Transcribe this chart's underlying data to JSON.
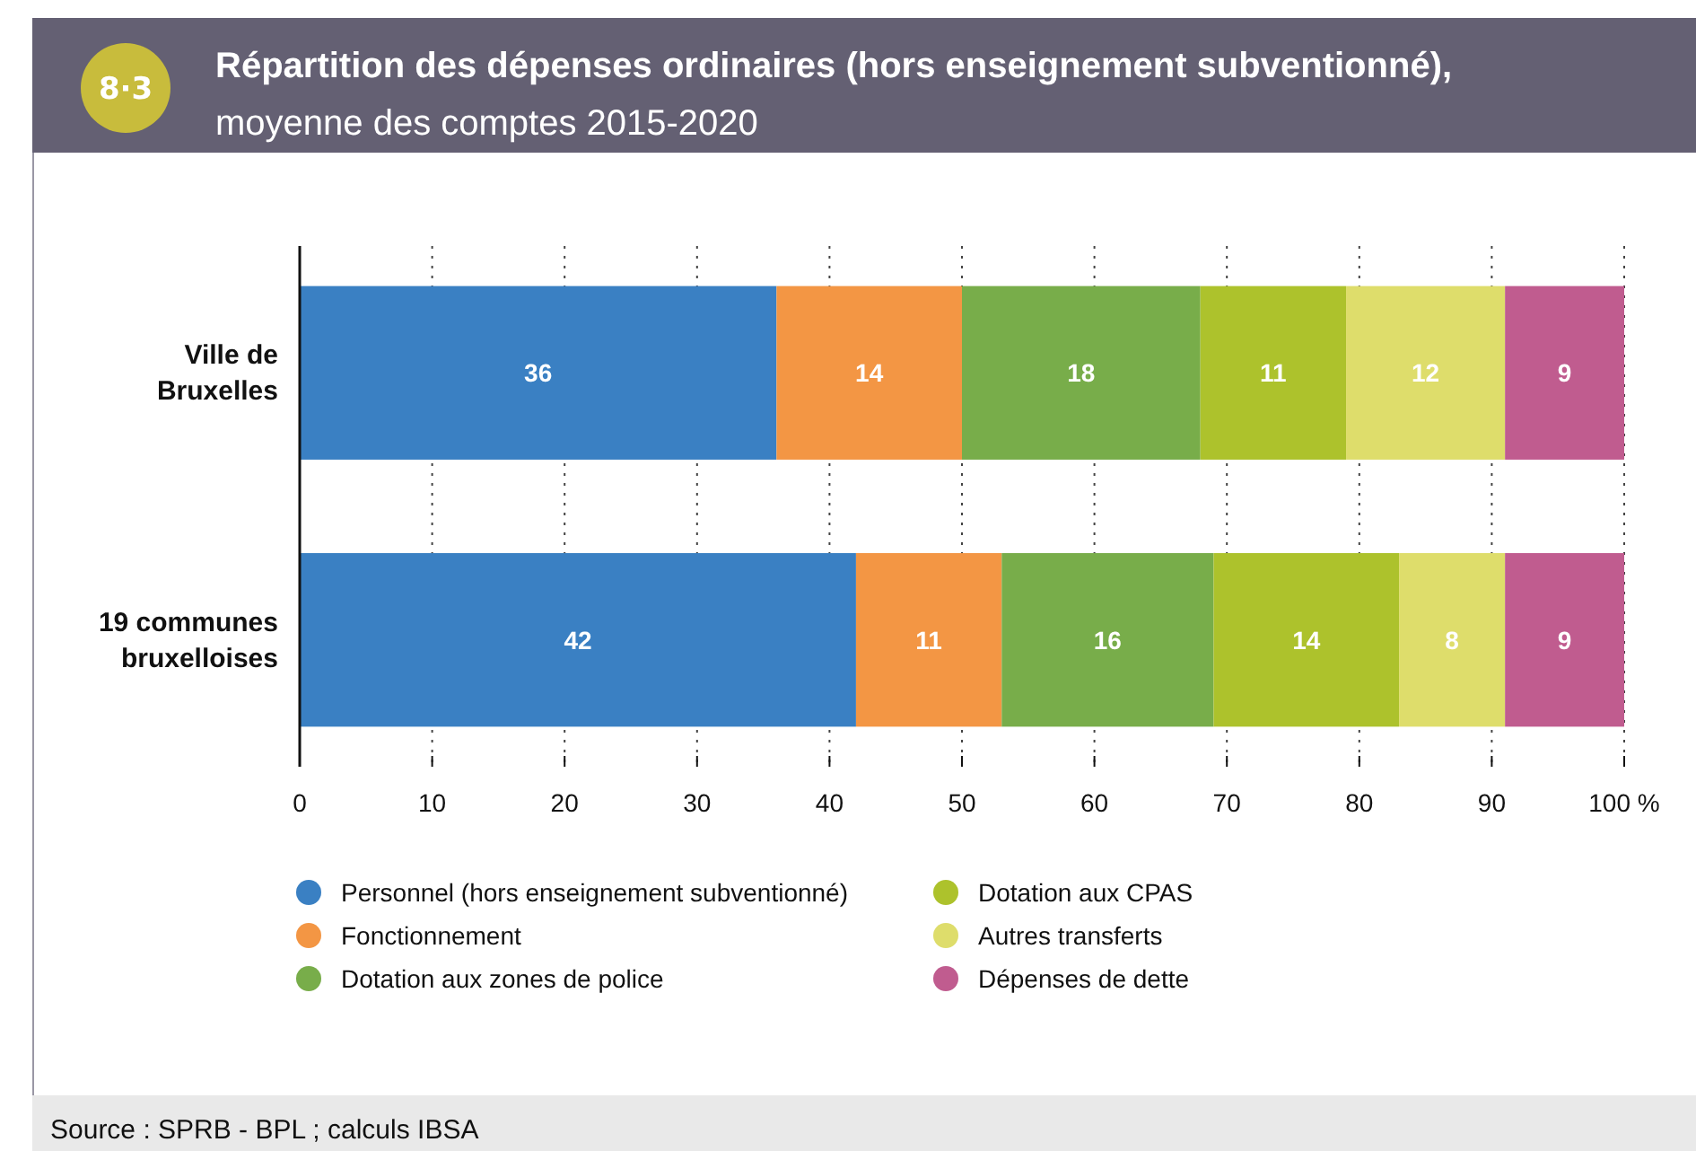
{
  "chart_data": {
    "type": "bar",
    "orientation": "horizontal",
    "stacked": true,
    "title": "Répartition des dépenses ordinaires (hors enseignement subventionné),",
    "subtitle": "moyenne des comptes 2015-2020",
    "categories": [
      "Ville de\nBruxelles",
      "19 communes\nbruxelloises"
    ],
    "series": [
      {
        "name": "Personnel (hors enseignement subventionné)",
        "color": "#3a80c3",
        "values": [
          36,
          42
        ]
      },
      {
        "name": "Fonctionnement",
        "color": "#f39644",
        "values": [
          14,
          11
        ]
      },
      {
        "name": "Dotation aux zones de police",
        "color": "#78ad4a",
        "values": [
          18,
          16
        ]
      },
      {
        "name": "Dotation aux CPAS",
        "color": "#adc22c",
        "values": [
          11,
          14
        ]
      },
      {
        "name": "Autres transferts",
        "color": "#dedd6b",
        "values": [
          12,
          8
        ]
      },
      {
        "name": "Dépenses de dette",
        "color": "#c05c8f",
        "values": [
          9,
          9
        ]
      }
    ],
    "xlim": [
      0,
      100
    ],
    "xticks": [
      0,
      10,
      20,
      30,
      40,
      50,
      60,
      70,
      80,
      90,
      {
        "value": 100,
        "label": "100 %"
      }
    ],
    "grid": "x",
    "legend": "bottom",
    "data_labels": true,
    "annotations": [
      "8·3",
      "Source : SPRB - BPL ; calculs IBSA"
    ]
  }
}
